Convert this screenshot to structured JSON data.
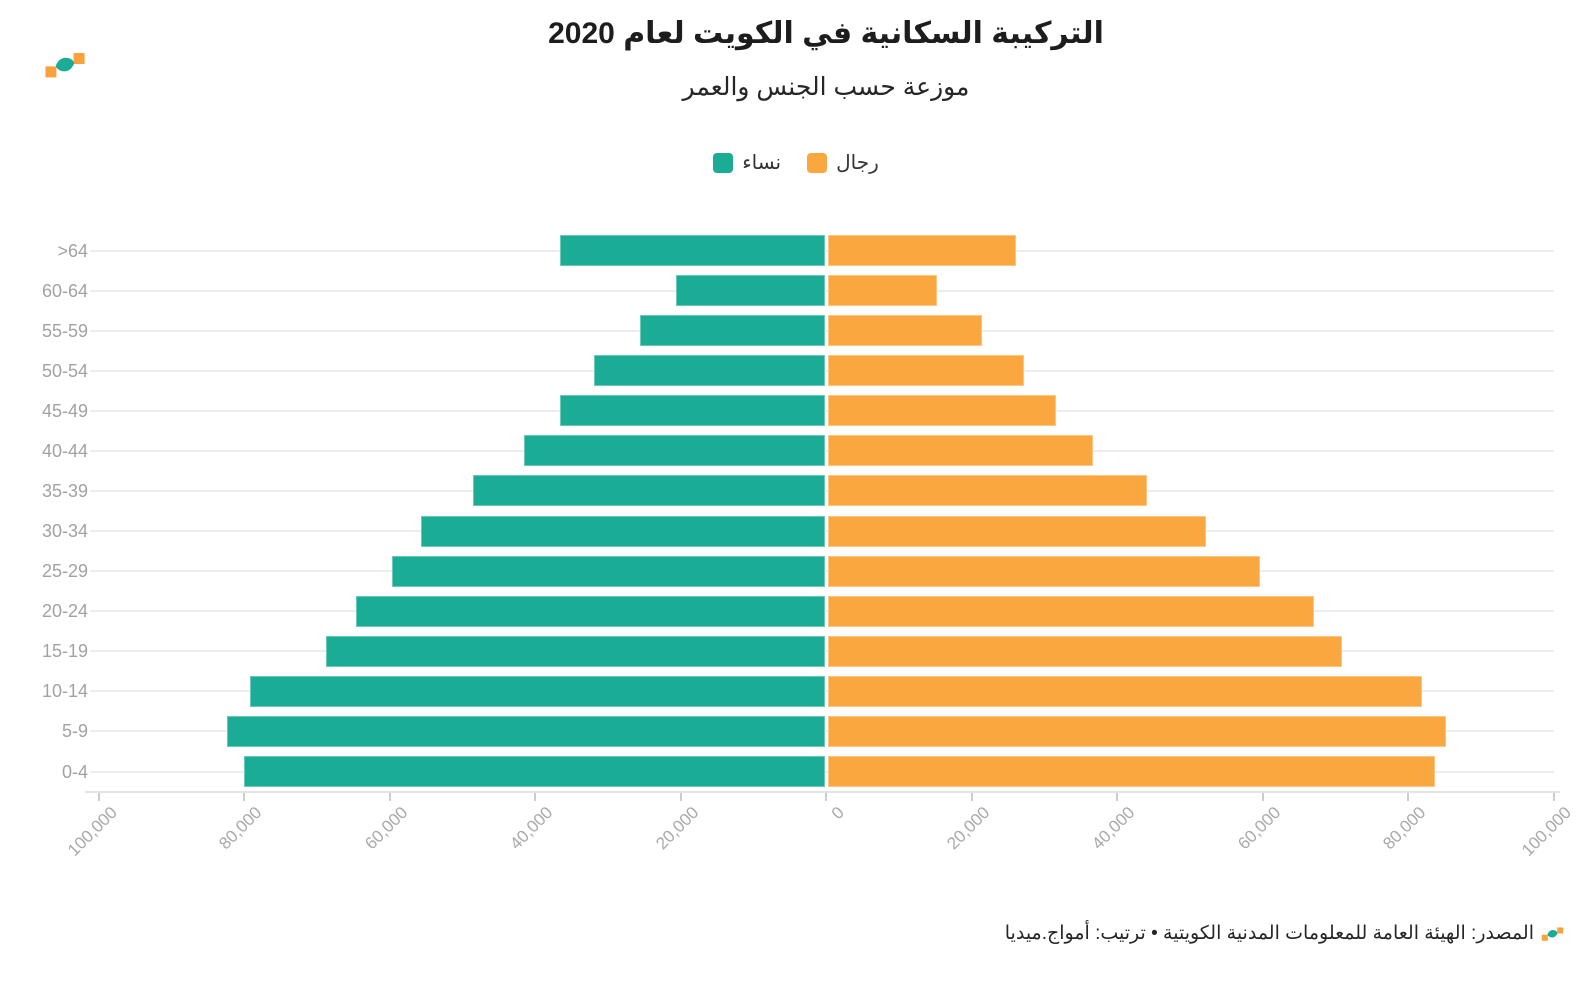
{
  "page": {
    "title": "التركيبة السكانية في الكويت لعام 2020",
    "subtitle": "موزعة حسب الجنس والعمر",
    "source_line": "المصدر: الهيئة العامة للمعلومات المدنية الكويتية • ترتيب: أمواج.ميديا"
  },
  "brand": {
    "logo_name": "amwaj-logo",
    "logo_orange": "#F9A13A",
    "logo_teal": "#1BAC96"
  },
  "legend": {
    "items": [
      {
        "key": "women",
        "label": "نساء",
        "color": "#1BAC96"
      },
      {
        "key": "men",
        "label": "رجال",
        "color": "#FBA740"
      }
    ]
  },
  "colors": {
    "women": "#1BAC96",
    "men": "#FBA740",
    "background": "#FFFFFF"
  },
  "chart_data": {
    "type": "bar",
    "variant": "population_pyramid",
    "orientation": "horizontal",
    "title": "التركيبة السكانية في الكويت لعام 2020",
    "subtitle": "موزعة حسب الجنس والعمر",
    "legend_position": "top-center",
    "grid": "row-lines",
    "categories": [
      ">64",
      "60-64",
      "55-59",
      "50-54",
      "45-49",
      "40-44",
      "35-39",
      "30-34",
      "25-29",
      "20-24",
      "15-19",
      "10-14",
      "5-9",
      "0-4"
    ],
    "series": [
      {
        "key": "women",
        "name": "نساء",
        "side": "left",
        "color": "#1BAC96",
        "values": [
          36400,
          20500,
          25400,
          31700,
          36400,
          41300,
          48400,
          55500,
          59500,
          64400,
          68600,
          79000,
          82100,
          79800
        ]
      },
      {
        "key": "men",
        "name": "رجال",
        "side": "right",
        "color": "#FBA740",
        "values": [
          25900,
          15000,
          21200,
          27000,
          31400,
          36400,
          43800,
          52000,
          59400,
          66800,
          70700,
          81700,
          85000,
          83400
        ]
      }
    ],
    "x_axis": {
      "min": -100000,
      "max": 100000,
      "ticks": [
        {
          "value": -100000,
          "label": "100,000"
        },
        {
          "value": -80000,
          "label": "80,000"
        },
        {
          "value": -60000,
          "label": "60,000"
        },
        {
          "value": -40000,
          "label": "40,000"
        },
        {
          "value": -20000,
          "label": "20,000"
        },
        {
          "value": 0,
          "label": "0"
        },
        {
          "value": 20000,
          "label": "20,000"
        },
        {
          "value": 40000,
          "label": "40,000"
        },
        {
          "value": 60000,
          "label": "60,000"
        },
        {
          "value": 80000,
          "label": "80,000"
        },
        {
          "value": 100000,
          "label": "100,000"
        }
      ]
    }
  }
}
